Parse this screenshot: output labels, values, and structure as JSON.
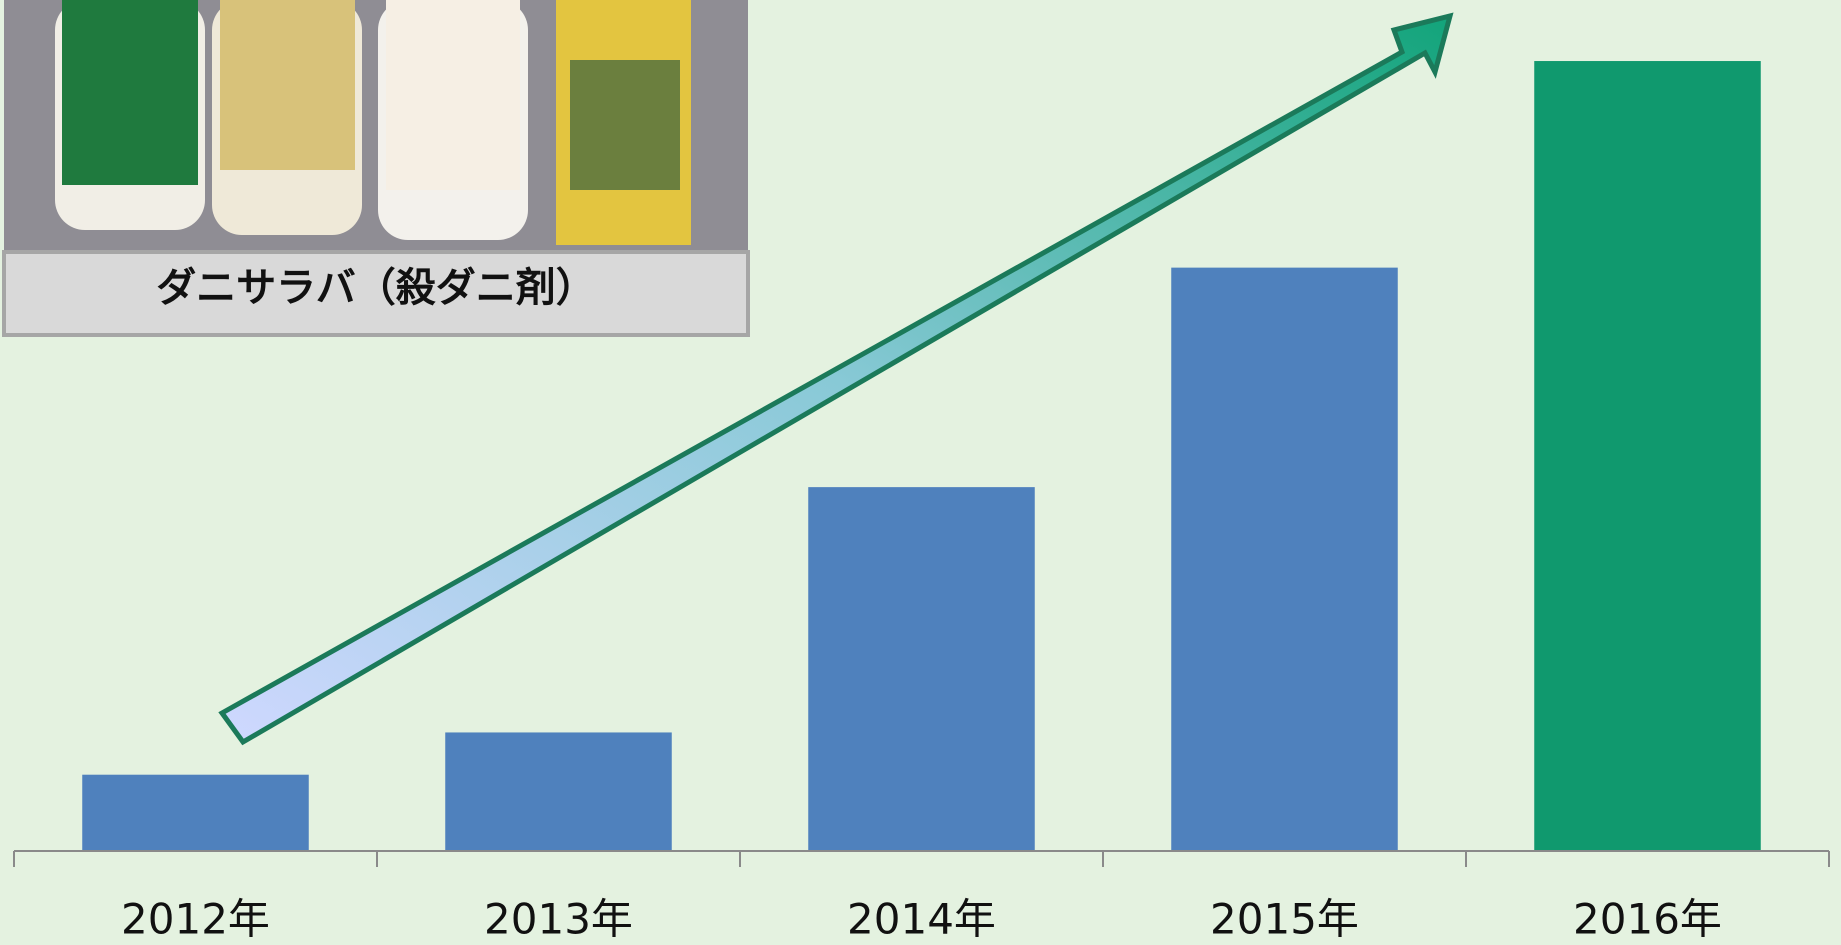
{
  "chart_data": {
    "type": "bar",
    "caption": "ダニサラバ（殺ダニ剤）",
    "categories": [
      "2012年",
      "2013年",
      "2014年",
      "2015年",
      "2016年"
    ],
    "values": [
      65,
      101,
      310,
      497,
      673
    ],
    "colors": [
      "#4f81bd",
      "#4f81bd",
      "#4f81bd",
      "#4f81bd",
      "#10996e"
    ],
    "ylim": [
      0,
      725
    ]
  }
}
